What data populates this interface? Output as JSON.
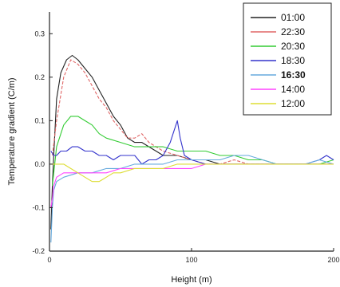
{
  "chart_data": {
    "type": "line",
    "title": "",
    "xlabel": "Height (m)",
    "ylabel": "Temperature gradient (C/m)",
    "xlim": [
      0,
      200
    ],
    "ylim": [
      -0.2,
      0.35
    ],
    "xticks": [
      0,
      100,
      200
    ],
    "xtick_labels": [
      "0",
      "100",
      "200"
    ],
    "yticks": [
      -0.2,
      -0.1,
      0.0,
      0.1,
      0.2,
      0.3
    ],
    "ytick_labels": [
      "-0.2",
      "-0.1",
      "0.0",
      "0.1",
      "0.2",
      "0.3"
    ],
    "grid": false,
    "legend_position": "top-right",
    "series": [
      {
        "name": "01:00",
        "color": "#222222",
        "x": [
          1,
          2,
          3,
          5,
          8,
          12,
          16,
          20,
          25,
          30,
          35,
          40,
          45,
          50,
          55,
          60,
          65,
          70,
          75,
          80,
          85,
          90,
          100,
          110,
          120,
          130,
          140,
          150,
          160,
          170,
          180,
          190,
          200
        ],
        "y": [
          -0.15,
          -0.05,
          0.02,
          0.15,
          0.21,
          0.24,
          0.25,
          0.24,
          0.22,
          0.2,
          0.17,
          0.14,
          0.11,
          0.09,
          0.06,
          0.05,
          0.05,
          0.04,
          0.03,
          0.02,
          0.02,
          0.02,
          0.01,
          0.01,
          0.0,
          0.0,
          0.0,
          0.0,
          0.0,
          0.0,
          0.0,
          0.0,
          0.0
        ]
      },
      {
        "name": "22:30",
        "color": "#e06666",
        "x": [
          2,
          5,
          10,
          15,
          20,
          25,
          30,
          35,
          40,
          45,
          50,
          55,
          60,
          65,
          70,
          75,
          80,
          90,
          100,
          110,
          120,
          130,
          140,
          150,
          160,
          170,
          180,
          190,
          200
        ],
        "y": [
          0.02,
          0.1,
          0.2,
          0.24,
          0.23,
          0.21,
          0.18,
          0.15,
          0.13,
          0.1,
          0.08,
          0.06,
          0.06,
          0.07,
          0.05,
          0.04,
          0.03,
          0.02,
          0.01,
          0.0,
          0.0,
          0.01,
          0.0,
          0.0,
          0.0,
          0.0,
          0.0,
          0.0,
          0.0
        ]
      },
      {
        "name": "20:30",
        "color": "#33cc33",
        "x": [
          2,
          5,
          10,
          15,
          20,
          25,
          30,
          35,
          40,
          50,
          60,
          70,
          80,
          90,
          100,
          110,
          120,
          130,
          140,
          150,
          160,
          170,
          180,
          190,
          200
        ],
        "y": [
          -0.05,
          0.04,
          0.09,
          0.11,
          0.11,
          0.1,
          0.09,
          0.07,
          0.06,
          0.05,
          0.04,
          0.04,
          0.04,
          0.03,
          0.03,
          0.03,
          0.02,
          0.02,
          0.01,
          0.01,
          0.0,
          0.0,
          0.0,
          0.0,
          0.01
        ]
      },
      {
        "name": "18:30",
        "color": "#3333cc",
        "x": [
          1,
          3,
          5,
          8,
          12,
          16,
          20,
          25,
          30,
          35,
          40,
          45,
          50,
          55,
          60,
          65,
          70,
          75,
          80,
          85,
          88,
          90,
          92,
          95,
          100,
          110,
          120,
          130,
          140,
          150,
          160,
          170,
          180,
          190,
          195,
          200
        ],
        "y": [
          0.03,
          0.02,
          0.02,
          0.03,
          0.03,
          0.04,
          0.04,
          0.03,
          0.03,
          0.02,
          0.02,
          0.01,
          0.02,
          0.02,
          0.02,
          0.0,
          0.01,
          0.01,
          0.02,
          0.05,
          0.08,
          0.1,
          0.06,
          0.02,
          0.01,
          0.0,
          0.0,
          0.0,
          0.0,
          0.0,
          0.0,
          0.0,
          0.0,
          0.01,
          0.02,
          0.01
        ]
      },
      {
        "name": "16:30",
        "color": "#66aadd",
        "x": [
          1,
          2,
          3,
          5,
          10,
          20,
          30,
          40,
          50,
          60,
          70,
          80,
          90,
          100,
          110,
          120,
          130,
          140,
          150,
          160,
          170,
          180,
          190,
          200
        ],
        "y": [
          -0.18,
          -0.1,
          -0.06,
          -0.04,
          -0.03,
          -0.02,
          -0.02,
          -0.01,
          -0.01,
          0.0,
          0.0,
          0.0,
          0.01,
          0.01,
          0.01,
          0.01,
          0.02,
          0.02,
          0.01,
          0.0,
          0.0,
          0.0,
          0.01,
          0.0
        ]
      },
      {
        "name": "14:00",
        "color": "#ff44ff",
        "x": [
          1,
          2,
          3,
          5,
          10,
          20,
          30,
          40,
          50,
          60,
          70,
          80,
          90,
          100,
          110,
          120,
          130,
          140,
          150,
          160,
          170,
          180,
          190,
          200
        ],
        "y": [
          -0.1,
          -0.08,
          -0.05,
          -0.03,
          -0.02,
          -0.02,
          -0.02,
          -0.02,
          -0.01,
          -0.01,
          -0.01,
          -0.01,
          -0.01,
          -0.01,
          0.0,
          0.0,
          0.0,
          0.0,
          0.0,
          0.0,
          0.0,
          0.0,
          0.0,
          0.0
        ]
      },
      {
        "name": "12:00",
        "color": "#dddd33",
        "x": [
          1,
          3,
          5,
          10,
          15,
          20,
          25,
          30,
          35,
          40,
          45,
          50,
          60,
          70,
          80,
          90,
          100,
          110,
          120,
          130,
          140,
          150,
          160,
          170,
          180,
          190,
          200
        ],
        "y": [
          0.0,
          0.0,
          0.0,
          0.0,
          -0.01,
          -0.02,
          -0.03,
          -0.04,
          -0.04,
          -0.03,
          -0.02,
          -0.02,
          -0.01,
          -0.01,
          -0.01,
          0.0,
          0.0,
          0.0,
          0.0,
          0.0,
          0.0,
          0.0,
          0.0,
          0.0,
          0.0,
          0.0,
          0.0
        ]
      }
    ]
  }
}
